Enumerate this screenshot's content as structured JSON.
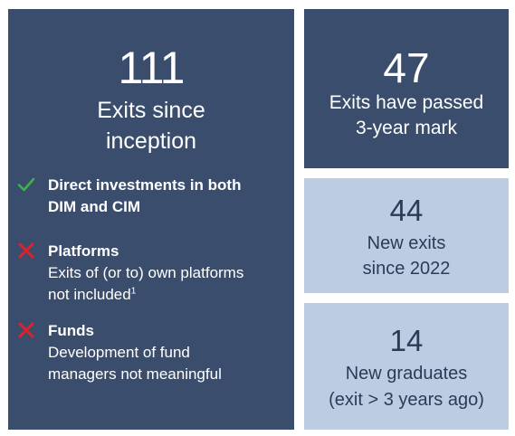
{
  "colors": {
    "dark_panel": "#3a4d6c",
    "light_panel": "#bccde3",
    "check_green": "#3db34a",
    "cross_red": "#e0202a"
  },
  "main": {
    "number": "111",
    "caption_line1": "Exits since",
    "caption_line2": "inception",
    "criteria": [
      {
        "icon": "check-icon",
        "title_line1": "Direct investments in both",
        "title_line2": "DIM and CIM"
      },
      {
        "icon": "cross-icon",
        "title": "Platforms",
        "desc_line1": "Exits of (or to) own platforms",
        "desc_line2": "not included",
        "footnote": "1"
      },
      {
        "icon": "cross-icon",
        "title": "Funds",
        "desc_line1": "Development of fund",
        "desc_line2": "managers not meaningful"
      }
    ]
  },
  "stats": [
    {
      "number": "47",
      "caption_line1": "Exits have passed",
      "caption_line2": "3-year mark"
    },
    {
      "number": "44",
      "caption_line1": "New exits",
      "caption_line2": "since 2022"
    },
    {
      "number": "14",
      "caption_line1": "New graduates",
      "caption_line2": "(exit > 3 years ago)"
    }
  ]
}
